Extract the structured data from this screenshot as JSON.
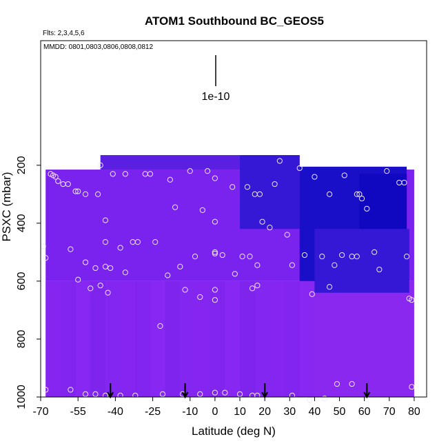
{
  "chart_data": {
    "type": "heatmap",
    "title": "ATOM1 Southbound BC_GEOS5",
    "subtitle_flights": "Flts: 2,3,4,5,6",
    "subtitle_dates": "MMDD: 0801,0803,0806,0808,0812",
    "xlabel": "Latitude (deg N)",
    "ylabel": "PSXC (mbar)",
    "xlim": [
      -70,
      85
    ],
    "ylim": [
      1000,
      -230
    ],
    "x_ticks": [
      -70,
      -55,
      -40,
      -25,
      -10,
      0,
      10,
      20,
      30,
      40,
      50,
      60,
      70,
      80
    ],
    "y_ticks": [
      200,
      400,
      600,
      800,
      1000
    ],
    "scale_bar_label": "1e-10",
    "grid": false,
    "legend": "none",
    "colors": {
      "background_fill": "#7a22ee",
      "deep_blue": "#1a0fc8",
      "mid_blue": "#3418d6",
      "dark_purple": "#5a1fe0",
      "light_purple": "#8a28f0",
      "marker_stroke": "#f0e8ff",
      "arrow": "#000000"
    },
    "field_cells": [
      {
        "x0": -68,
        "x1": 80,
        "y0": 600,
        "y1": 1000,
        "level": "light"
      },
      {
        "x0": -68,
        "x1": 80,
        "y0": 215,
        "y1": 600,
        "level": "purple"
      },
      {
        "x0": -46,
        "x1": 34,
        "y0": 165,
        "y1": 215,
        "level": "dark"
      },
      {
        "x0": 10,
        "x1": 34,
        "y0": 165,
        "y1": 420,
        "level": "mid"
      },
      {
        "x0": 34,
        "x1": 77,
        "y0": 205,
        "y1": 600,
        "level": "deep"
      },
      {
        "x0": 58,
        "x1": 77,
        "y0": 230,
        "y1": 470,
        "level": "core"
      },
      {
        "x0": 40,
        "x1": 78,
        "y0": 420,
        "y1": 640,
        "level": "mid"
      }
    ],
    "arrows_lat": [
      -42,
      -12,
      20,
      61
    ],
    "points": [
      {
        "x": -66,
        "y": 230
      },
      {
        "x": -65,
        "y": 235
      },
      {
        "x": -64,
        "y": 240
      },
      {
        "x": -63,
        "y": 255
      },
      {
        "x": -61,
        "y": 265
      },
      {
        "x": -59,
        "y": 265
      },
      {
        "x": -56,
        "y": 290
      },
      {
        "x": -55,
        "y": 290
      },
      {
        "x": -52,
        "y": 300
      },
      {
        "x": -47,
        "y": 300
      },
      {
        "x": -46,
        "y": 200
      },
      {
        "x": -41,
        "y": 230
      },
      {
        "x": -36,
        "y": 230
      },
      {
        "x": -28,
        "y": 230
      },
      {
        "x": -26,
        "y": 230
      },
      {
        "x": -18,
        "y": 250
      },
      {
        "x": -16,
        "y": 345
      },
      {
        "x": -10,
        "y": 220
      },
      {
        "x": -5,
        "y": 355
      },
      {
        "x": -3,
        "y": 220
      },
      {
        "x": 0,
        "y": 245
      },
      {
        "x": 0,
        "y": 395
      },
      {
        "x": 7,
        "y": 275
      },
      {
        "x": 13,
        "y": 275
      },
      {
        "x": 16,
        "y": 300
      },
      {
        "x": 18,
        "y": 300
      },
      {
        "x": 19,
        "y": 395
      },
      {
        "x": 22,
        "y": 415
      },
      {
        "x": 24,
        "y": 265
      },
      {
        "x": 26,
        "y": 185
      },
      {
        "x": 29,
        "y": 440
      },
      {
        "x": 34,
        "y": 210
      },
      {
        "x": 40,
        "y": 240
      },
      {
        "x": 46,
        "y": 300
      },
      {
        "x": 52,
        "y": 235
      },
      {
        "x": 57,
        "y": 300
      },
      {
        "x": 58,
        "y": 300
      },
      {
        "x": 59,
        "y": 315
      },
      {
        "x": 61,
        "y": 350
      },
      {
        "x": 69,
        "y": 220
      },
      {
        "x": 74,
        "y": 260
      },
      {
        "x": 76,
        "y": 260
      },
      {
        "x": -69,
        "y": 480
      },
      {
        "x": -68,
        "y": 520
      },
      {
        "x": -58,
        "y": 490
      },
      {
        "x": -55,
        "y": 595
      },
      {
        "x": -52,
        "y": 535
      },
      {
        "x": -50,
        "y": 625
      },
      {
        "x": -48,
        "y": 555
      },
      {
        "x": -46,
        "y": 615
      },
      {
        "x": -44,
        "y": 390
      },
      {
        "x": -44,
        "y": 465
      },
      {
        "x": -44,
        "y": 550
      },
      {
        "x": -43,
        "y": 640
      },
      {
        "x": -42,
        "y": 555
      },
      {
        "x": -38,
        "y": 485
      },
      {
        "x": -36,
        "y": 570
      },
      {
        "x": -33,
        "y": 465
      },
      {
        "x": -31,
        "y": 465
      },
      {
        "x": -24,
        "y": 465
      },
      {
        "x": -19,
        "y": 580
      },
      {
        "x": -14,
        "y": 550
      },
      {
        "x": -12,
        "y": 630
      },
      {
        "x": -8,
        "y": 515
      },
      {
        "x": -6,
        "y": 655
      },
      {
        "x": 0,
        "y": 500
      },
      {
        "x": 0,
        "y": 505
      },
      {
        "x": 0,
        "y": 630
      },
      {
        "x": 0,
        "y": 665
      },
      {
        "x": 3,
        "y": 510
      },
      {
        "x": 8,
        "y": 575
      },
      {
        "x": 11,
        "y": 515
      },
      {
        "x": 14,
        "y": 515
      },
      {
        "x": 15,
        "y": 625
      },
      {
        "x": 17,
        "y": 545
      },
      {
        "x": 17,
        "y": 615
      },
      {
        "x": 31,
        "y": 545
      },
      {
        "x": 36,
        "y": 510
      },
      {
        "x": 39,
        "y": 645
      },
      {
        "x": 43,
        "y": 515
      },
      {
        "x": 46,
        "y": 620
      },
      {
        "x": 48,
        "y": 545
      },
      {
        "x": 51,
        "y": 510
      },
      {
        "x": 55,
        "y": 515
      },
      {
        "x": 57,
        "y": 515
      },
      {
        "x": 64,
        "y": 500
      },
      {
        "x": 66,
        "y": 560
      },
      {
        "x": 77,
        "y": 515
      },
      {
        "x": 78,
        "y": 660
      },
      {
        "x": 79,
        "y": 665
      },
      {
        "x": -68,
        "y": 975
      },
      {
        "x": -58,
        "y": 975
      },
      {
        "x": -52,
        "y": 990
      },
      {
        "x": -48,
        "y": 990
      },
      {
        "x": -44,
        "y": 995
      },
      {
        "x": -38,
        "y": 995
      },
      {
        "x": -32,
        "y": 995
      },
      {
        "x": -21,
        "y": 990
      },
      {
        "x": -22,
        "y": 755
      },
      {
        "x": -13,
        "y": 990
      },
      {
        "x": -6,
        "y": 990
      },
      {
        "x": 0,
        "y": 985
      },
      {
        "x": 4,
        "y": 985
      },
      {
        "x": 10,
        "y": 990
      },
      {
        "x": 15,
        "y": 995
      },
      {
        "x": 17,
        "y": 995
      },
      {
        "x": 31,
        "y": 995
      },
      {
        "x": 38,
        "y": 1010
      },
      {
        "x": 49,
        "y": 955
      },
      {
        "x": 55,
        "y": 955
      },
      {
        "x": 79,
        "y": 965
      },
      {
        "x": 44,
        "y": 1005
      }
    ]
  }
}
